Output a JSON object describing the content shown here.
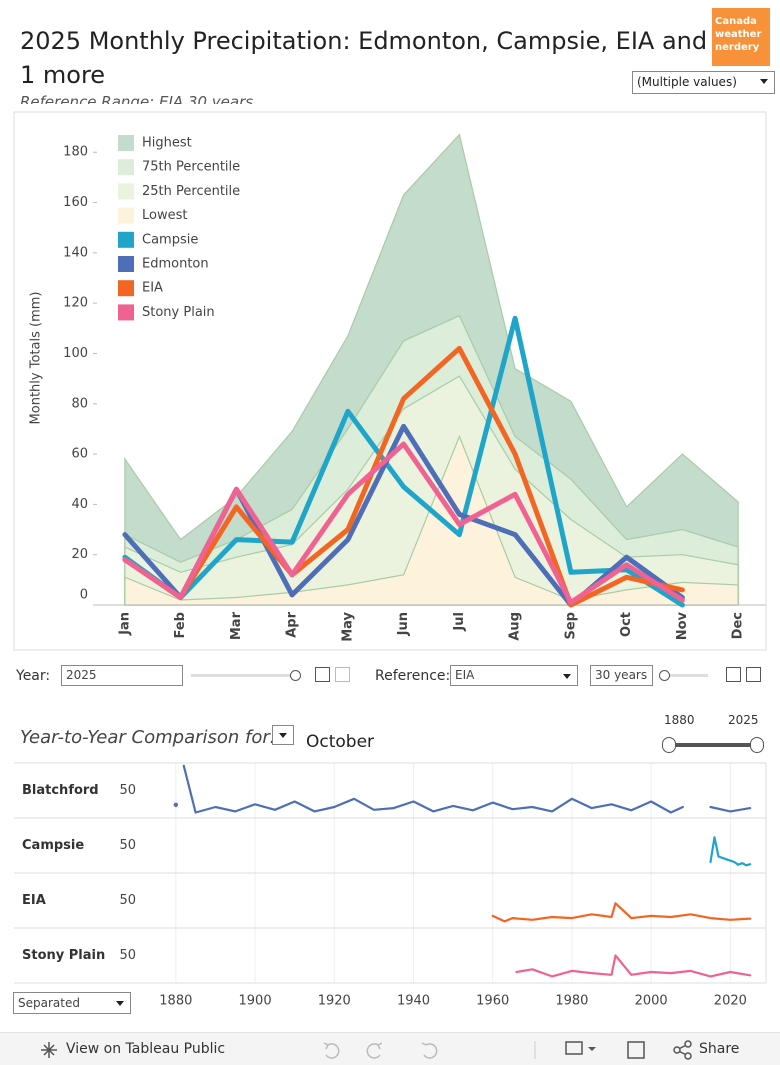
{
  "header": {
    "logo": [
      "Canada",
      "weather",
      "nerdery"
    ],
    "filter": "(Multiple values)"
  },
  "chart_data": [
    {
      "type": "line",
      "title": "2025 Monthly Precipitation: Edmonton, Campsie, EIA and 1 more",
      "subtitle": "Reference Range: EIA 30 years",
      "y_label": "Monthly Totals (mm)",
      "categories": [
        "Jan",
        "Feb",
        "Mar",
        "Apr",
        "May",
        "Jun",
        "Jul",
        "Aug",
        "Sep",
        "Oct",
        "Nov",
        "Dec"
      ],
      "ylim": [
        0,
        196
      ],
      "yticks": [
        0,
        20,
        40,
        60,
        80,
        100,
        120,
        140,
        160,
        180
      ],
      "grid": false,
      "legend": "top-left",
      "bands": [
        {
          "name": "Highest",
          "color": "#c3dccb",
          "values": [
            58,
            26,
            43,
            69,
            107,
            163,
            187,
            94,
            81,
            39,
            60,
            41
          ]
        },
        {
          "name": "75th Percentile",
          "color": "#dcedd9",
          "values": [
            28,
            17,
            26,
            38,
            70,
            105,
            115,
            67,
            50,
            26,
            30,
            23
          ]
        },
        {
          "name": "25th Percentile",
          "color": "#ebf3de",
          "values": [
            23,
            13,
            19,
            24,
            46,
            78,
            91,
            54,
            34,
            19,
            20,
            16
          ]
        },
        {
          "name": "Lowest",
          "color": "#fdf3dc",
          "values": [
            11,
            2,
            3,
            5,
            8,
            12,
            67,
            11,
            2,
            6,
            9,
            8
          ]
        }
      ],
      "series": [
        {
          "name": "Campsie",
          "color": "#1fa5c9",
          "values": [
            19,
            3,
            26,
            25,
            77,
            47,
            28,
            114,
            13,
            14,
            0,
            null
          ]
        },
        {
          "name": "Edmonton",
          "color": "#4e6fb8",
          "values": [
            28,
            3,
            46,
            4,
            26,
            71,
            36,
            28,
            0,
            19,
            3,
            null
          ]
        },
        {
          "name": "EIA",
          "color": "#f26522",
          "values": [
            18,
            3,
            39,
            12,
            30,
            82,
            102,
            60,
            0,
            11,
            6,
            null
          ]
        },
        {
          "name": "Stony Plain",
          "color": "#f06292",
          "values": [
            18,
            3,
            46,
            12,
            44,
            64,
            32,
            44,
            1,
            16,
            2,
            null
          ]
        }
      ]
    },
    {
      "type": "line",
      "title": "Year-to-Year Comparison for:",
      "month": "October",
      "range": [
        1880,
        2025
      ],
      "layout": "Separated",
      "xlim": [
        1876,
        2029
      ],
      "xticks": [
        1880,
        1900,
        1920,
        1940,
        1960,
        1980,
        2000,
        2020
      ],
      "ylim": [
        0,
        100
      ],
      "yticks": [
        50
      ],
      "series": [
        {
          "name": "Blatchford",
          "color": "#4e6fb8",
          "x": [
            1880,
            1881,
            1882,
            1885,
            1890,
            1895,
            1900,
            1905,
            1910,
            1915,
            1920,
            1925,
            1930,
            1935,
            1940,
            1945,
            1950,
            1955,
            1960,
            1965,
            1970,
            1975,
            1980,
            1985,
            1990,
            1995,
            2000,
            2005,
            2008,
            2012,
            2015,
            2020,
            2025
          ],
          "values": [
            24,
            null,
            95,
            10,
            20,
            12,
            25,
            15,
            30,
            12,
            20,
            35,
            15,
            18,
            30,
            12,
            22,
            14,
            28,
            16,
            20,
            12,
            35,
            18,
            25,
            14,
            30,
            10,
            20,
            null,
            20,
            12,
            18
          ]
        },
        {
          "name": "Campsie",
          "color": "#1fa5c9",
          "x": [
            2015,
            2016,
            2017,
            2019,
            2021,
            2022,
            2023,
            2024,
            2025
          ],
          "values": [
            20,
            65,
            30,
            25,
            20,
            15,
            18,
            14,
            16
          ]
        },
        {
          "name": "EIA",
          "color": "#f26522",
          "x": [
            1960,
            1963,
            1965,
            1970,
            1975,
            1980,
            1985,
            1990,
            1991,
            1995,
            2000,
            2005,
            2010,
            2015,
            2020,
            2025
          ],
          "values": [
            22,
            12,
            18,
            15,
            20,
            18,
            25,
            20,
            45,
            18,
            22,
            20,
            25,
            18,
            15,
            17
          ]
        },
        {
          "name": "Stony Plain",
          "color": "#f06292",
          "x": [
            1966,
            1970,
            1975,
            1980,
            1985,
            1990,
            1991,
            1995,
            2000,
            2005,
            2010,
            2015,
            2020,
            2025
          ],
          "values": [
            20,
            25,
            12,
            22,
            18,
            15,
            50,
            15,
            20,
            18,
            22,
            12,
            20,
            14
          ]
        }
      ]
    }
  ],
  "controls": {
    "year_label": "Year:",
    "year": "2025",
    "reference_label": "Reference:",
    "reference": "EIA",
    "period": "30 years"
  },
  "toolbar": {
    "view": "View on Tableau Public",
    "share": "Share"
  }
}
